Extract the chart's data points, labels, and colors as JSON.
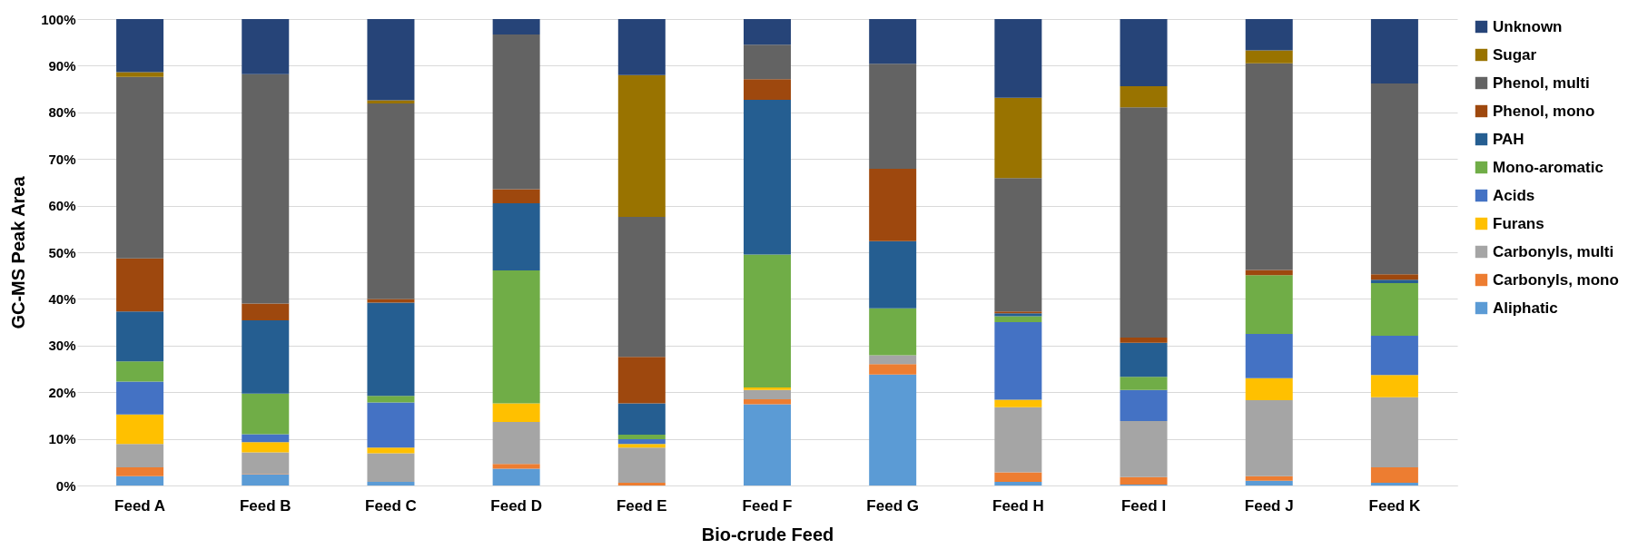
{
  "chart_data": {
    "type": "bar",
    "stacked": true,
    "xlabel": "Bio-crude Feed",
    "ylabel": "GC-MS Peak Area",
    "categories": [
      "Feed A",
      "Feed B",
      "Feed C",
      "Feed D",
      "Feed E",
      "Feed F",
      "Feed G",
      "Feed H",
      "Feed I",
      "Feed J",
      "Feed K"
    ],
    "series": [
      {
        "name": "Aliphatic",
        "color": "#5b9bd5",
        "values": [
          2.0,
          2.4,
          0.8,
          3.6,
          0,
          17.4,
          23.8,
          0.8,
          0.2,
          1.0,
          0.6
        ]
      },
      {
        "name": "Carbonyls, mono",
        "color": "#ed7d31",
        "values": [
          1.9,
          0.1,
          0,
          1.0,
          0.6,
          1.1,
          2.2,
          2.0,
          1.6,
          1.0,
          3.3
        ]
      },
      {
        "name": "Carbonyls,  multi",
        "color": "#a5a5a5",
        "values": [
          5.0,
          4.6,
          6.1,
          9.0,
          7.5,
          2.0,
          1.9,
          14.0,
          12.0,
          16.3,
          15.0
        ]
      },
      {
        "name": "Furans",
        "color": "#ffc000",
        "values": [
          6.3,
          2.2,
          1.2,
          4.0,
          0.8,
          0.5,
          0,
          1.6,
          0,
          4.7,
          4.8
        ]
      },
      {
        "name": "Acids",
        "color": "#4472c4",
        "values": [
          7.1,
          1.7,
          9.7,
          0,
          1.0,
          0,
          0,
          16.6,
          6.7,
          9.5,
          8.4
        ]
      },
      {
        "name": "Mono-aromatic",
        "color": "#70ad47",
        "values": [
          4.3,
          8.7,
          1.4,
          28.5,
          1.0,
          28.5,
          10.1,
          1.3,
          2.8,
          12.6,
          11.3
        ]
      },
      {
        "name": "PAH",
        "color": "#255e91",
        "values": [
          10.7,
          15.7,
          20.0,
          14.4,
          6.7,
          33.2,
          14.4,
          0.6,
          7.3,
          0,
          0.7
        ]
      },
      {
        "name": "Phenol, mono",
        "color": "#9e480e",
        "values": [
          11.4,
          3.6,
          0.8,
          3.0,
          10.0,
          4.4,
          15.5,
          0.4,
          1.1,
          1.1,
          1.2
        ]
      },
      {
        "name": "Phenol, multi",
        "color": "#636363",
        "values": [
          38.9,
          49.2,
          41.9,
          33.2,
          30.0,
          7.4,
          22.5,
          28.6,
          49.4,
          44.3,
          40.9
        ]
      },
      {
        "name": "Sugar",
        "color": "#997300",
        "values": [
          1.0,
          0,
          0.7,
          0,
          30.4,
          0,
          0,
          17.2,
          4.5,
          2.8,
          0
        ]
      },
      {
        "name": "Unknown",
        "color": "#264478",
        "values": [
          11.4,
          11.8,
          17.4,
          3.3,
          12.0,
          5.5,
          9.6,
          16.9,
          14.4,
          6.7,
          13.8
        ]
      }
    ],
    "ylim": [
      0,
      100
    ],
    "yticks": [
      {
        "value": 0,
        "label": "0%"
      },
      {
        "value": 10,
        "label": "10%"
      },
      {
        "value": 20,
        "label": "20%"
      },
      {
        "value": 30,
        "label": "30%"
      },
      {
        "value": 40,
        "label": "40%"
      },
      {
        "value": 50,
        "label": "50%"
      },
      {
        "value": 60,
        "label": "60%"
      },
      {
        "value": 70,
        "label": "70%"
      },
      {
        "value": 80,
        "label": "80%"
      },
      {
        "value": 90,
        "label": "90%"
      },
      {
        "value": 100,
        "label": "100%"
      }
    ],
    "grid": "y",
    "legend": "right"
  }
}
